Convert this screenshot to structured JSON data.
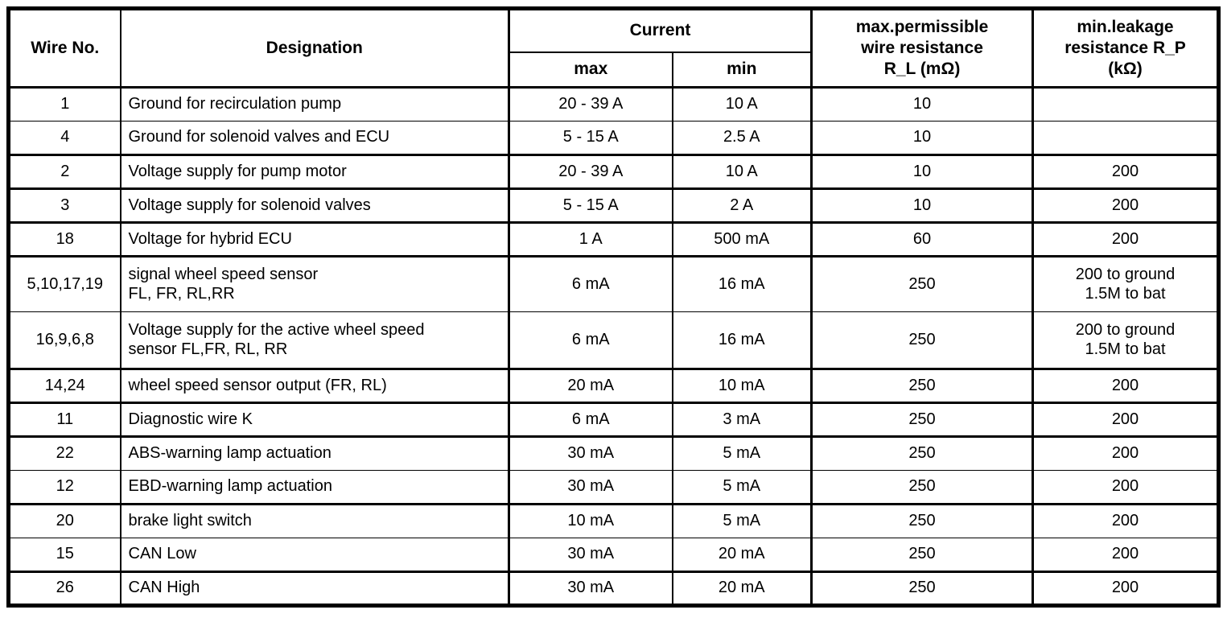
{
  "table": {
    "headers": {
      "wire_no": "Wire No.",
      "designation": "Designation",
      "current": "Current",
      "current_max": "max",
      "current_min": "min",
      "resistance_rl": "max.permissible\nwire resistance\nR_L (mΩ)",
      "resistance_rp": "min.leakage\nresistance R_P\n(kΩ)"
    },
    "rows": [
      {
        "wire": "1",
        "designation": "Ground for recirculation pump",
        "max": "20 - 39 A",
        "min": "10 A",
        "rl": "10",
        "rp": ""
      },
      {
        "wire": "4",
        "designation": "Ground for solenoid valves and ECU",
        "max": "5 - 15 A",
        "min": "2.5 A",
        "rl": "10",
        "rp": ""
      },
      {
        "wire": "2",
        "designation": "Voltage supply for pump motor",
        "max": "20 - 39 A",
        "min": "10 A",
        "rl": "10",
        "rp": "200"
      },
      {
        "wire": "3",
        "designation": "Voltage supply for solenoid valves",
        "max": "5 - 15 A",
        "min": "2 A",
        "rl": "10",
        "rp": "200"
      },
      {
        "wire": "18",
        "designation": "Voltage for hybrid ECU",
        "max": "1 A",
        "min": "500 mA",
        "rl": "60",
        "rp": "200"
      },
      {
        "wire": "5,10,17,19",
        "designation": "signal wheel speed sensor\nFL, FR, RL,RR",
        "max": "6 mA",
        "min": "16 mA",
        "rl": "250",
        "rp": "200 to ground\n1.5M to bat"
      },
      {
        "wire": "16,9,6,8",
        "designation": "Voltage supply for the active wheel speed\nsensor FL,FR, RL, RR",
        "max": "6 mA",
        "min": "16 mA",
        "rl": "250",
        "rp": "200 to ground\n1.5M to bat"
      },
      {
        "wire": "14,24",
        "designation": "wheel speed sensor output (FR, RL)",
        "max": "20 mA",
        "min": "10 mA",
        "rl": "250",
        "rp": "200"
      },
      {
        "wire": "11",
        "designation": "Diagnostic wire K",
        "max": "6 mA",
        "min": "3 mA",
        "rl": "250",
        "rp": "200"
      },
      {
        "wire": "22",
        "designation": "ABS-warning lamp actuation",
        "max": "30 mA",
        "min": "5 mA",
        "rl": "250",
        "rp": "200"
      },
      {
        "wire": "12",
        "designation": "EBD-warning lamp actuation",
        "max": "30 mA",
        "min": "5 mA",
        "rl": "250",
        "rp": "200"
      },
      {
        "wire": "20",
        "designation": "brake light switch",
        "max": "10 mA",
        "min": "5 mA",
        "rl": "250",
        "rp": "200"
      },
      {
        "wire": "15",
        "designation": "CAN Low",
        "max": "30 mA",
        "min": "20 mA",
        "rl": "250",
        "rp": "200"
      },
      {
        "wire": "26",
        "designation": "CAN High",
        "max": "30 mA",
        "min": "20 mA",
        "rl": "250",
        "rp": "200"
      }
    ]
  }
}
